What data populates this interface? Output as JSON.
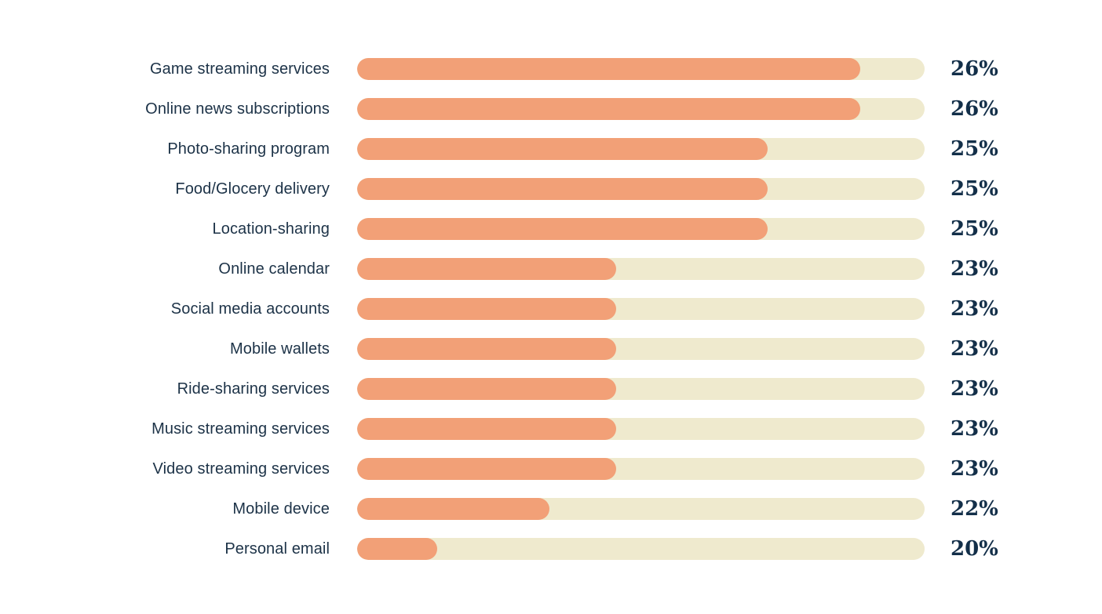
{
  "chart_data": {
    "type": "bar",
    "orientation": "horizontal",
    "title": "",
    "xlabel": "",
    "ylabel": "",
    "legend": false,
    "grid": false,
    "axes_visible": false,
    "value_suffix": "%",
    "categories": [
      "Game streaming services",
      "Online news subscriptions",
      "Photo-sharing program",
      "Food/Glocery delivery",
      "Location-sharing",
      "Online calendar",
      "Social media accounts",
      "Mobile wallets",
      "Ride-sharing services",
      "Music streaming services",
      "Video streaming services",
      "Mobile device",
      "Personal email"
    ],
    "values": [
      26,
      26,
      25,
      25,
      25,
      23,
      23,
      23,
      23,
      23,
      23,
      22,
      20
    ],
    "colors": {
      "bar_fill": "#f2a077",
      "bar_track": "#efeace",
      "category_text": "#1c3247",
      "value_text": "#132f49",
      "background": "#ffffff"
    },
    "rows": [
      {
        "category": "Game streaming services",
        "value": 26,
        "value_label": "26%",
        "fill_pct": 88.7
      },
      {
        "category": "Online news subscriptions",
        "value": 26,
        "value_label": "26%",
        "fill_pct": 88.7
      },
      {
        "category": "Photo-sharing program",
        "value": 25,
        "value_label": "25%",
        "fill_pct": 72.3
      },
      {
        "category": "Food/Glocery delivery",
        "value": 25,
        "value_label": "25%",
        "fill_pct": 72.3
      },
      {
        "category": "Location-sharing",
        "value": 25,
        "value_label": "25%",
        "fill_pct": 72.3
      },
      {
        "category": "Online calendar",
        "value": 23,
        "value_label": "23%",
        "fill_pct": 45.6
      },
      {
        "category": "Social media accounts",
        "value": 23,
        "value_label": "23%",
        "fill_pct": 45.6
      },
      {
        "category": "Mobile wallets",
        "value": 23,
        "value_label": "23%",
        "fill_pct": 45.6
      },
      {
        "category": "Ride-sharing services",
        "value": 23,
        "value_label": "23%",
        "fill_pct": 45.6
      },
      {
        "category": "Music streaming services",
        "value": 23,
        "value_label": "23%",
        "fill_pct": 45.6
      },
      {
        "category": "Video streaming services",
        "value": 23,
        "value_label": "23%",
        "fill_pct": 45.6
      },
      {
        "category": "Mobile device",
        "value": 22,
        "value_label": "22%",
        "fill_pct": 33.9
      },
      {
        "category": "Personal email",
        "value": 20,
        "value_label": "20%",
        "fill_pct": 14.1
      }
    ]
  }
}
